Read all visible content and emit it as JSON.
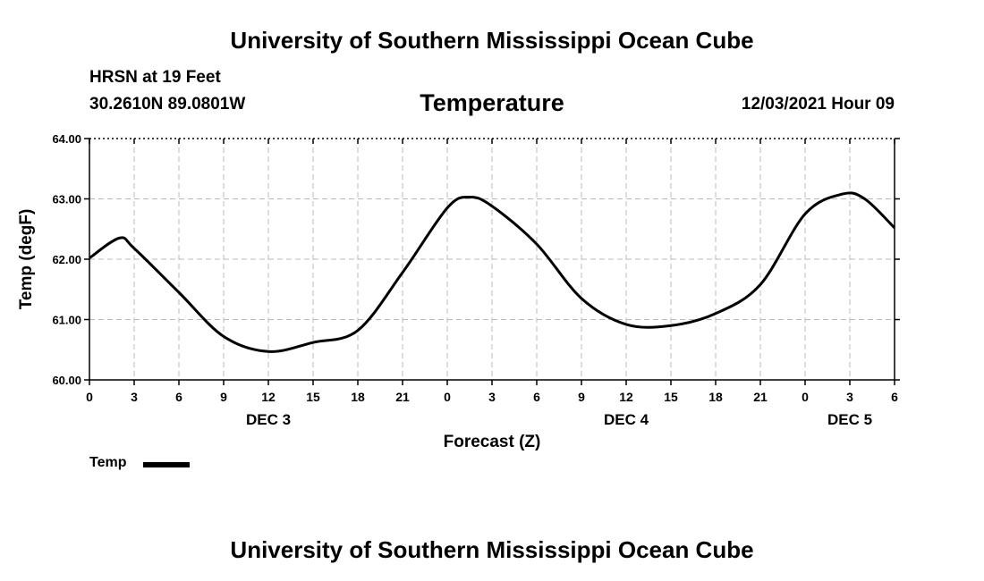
{
  "header": {
    "title": "University of Southern Mississippi Ocean Cube",
    "station": "HRSN at 19 Feet",
    "coords": "30.2610N  89.0801W",
    "chart_title": "Temperature",
    "datetime": "12/03/2021 Hour 09"
  },
  "footer": {
    "title": "University of Southern Mississippi Ocean Cube"
  },
  "legend": {
    "label": "Temp"
  },
  "chart_data": {
    "type": "line",
    "title": "Temperature",
    "xlabel": "Forecast (Z)",
    "ylabel": "Temp (degF)",
    "xlim": [
      0,
      54
    ],
    "ylim": [
      60,
      64
    ],
    "yticks": [
      "60.00",
      "61.00",
      "62.00",
      "63.00",
      "64.00"
    ],
    "xtick_labels": [
      "0",
      "3",
      "6",
      "9",
      "12",
      "15",
      "18",
      "21",
      "0",
      "3",
      "6",
      "9",
      "12",
      "15",
      "18",
      "21",
      "0",
      "3",
      "6"
    ],
    "day_labels": [
      {
        "text": "DEC 3",
        "hour": 12
      },
      {
        "text": "DEC 4",
        "hour": 36
      },
      {
        "text": "DEC 5",
        "hour": 51
      }
    ],
    "grid": true,
    "series": [
      {
        "name": "Temp",
        "color": "#000000",
        "x": [
          0,
          2,
          3,
          6,
          9,
          12,
          15,
          18,
          21,
          24,
          25.5,
          27,
          30,
          33,
          36,
          39,
          42,
          45,
          48,
          50.5,
          52,
          54
        ],
        "y": [
          62.02,
          62.35,
          62.18,
          61.45,
          60.72,
          60.47,
          60.62,
          60.82,
          61.78,
          62.85,
          63.03,
          62.88,
          62.25,
          61.35,
          60.92,
          60.9,
          61.1,
          61.58,
          62.75,
          63.08,
          63.0,
          62.52
        ]
      }
    ]
  }
}
